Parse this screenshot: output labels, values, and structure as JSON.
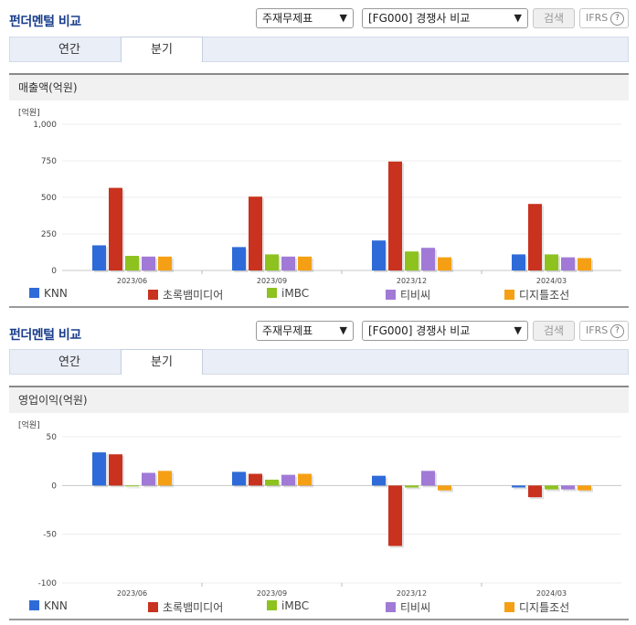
{
  "panels": [
    {
      "title": "펀더멘털 비교",
      "select_report": "주재무제표",
      "select_compare": "[FG000] 경쟁사 비교",
      "search_label": "검색",
      "ifrs_label": "IFRS",
      "help_label": "?",
      "tabs": [
        "연간",
        "분기"
      ],
      "active_tab": 1,
      "chart_title": "매출액(억원)",
      "chart_data": {
        "type": "bar",
        "title": "매출액(억원)",
        "unit_label": "[억원]",
        "categories": [
          "2023/06",
          "2023/09",
          "2023/12",
          "2024/03"
        ],
        "ylim": [
          0,
          1000
        ],
        "yticks": [
          0,
          250,
          500,
          750,
          1000
        ],
        "ytick_labels": [
          "0",
          "250",
          "500",
          "750",
          "1,000"
        ],
        "grid": true,
        "legend_position": "bottom",
        "series": [
          {
            "name": "KNN",
            "color": "#2e6bd8",
            "values": [
              172,
              160,
              205,
              110
            ]
          },
          {
            "name": "초록뱀미디어",
            "color": "#c8321e",
            "values": [
              565,
              505,
              745,
              455
            ]
          },
          {
            "name": "iMBC",
            "color": "#8dc21f",
            "values": [
              100,
              110,
              130,
              110
            ]
          },
          {
            "name": "티비씨",
            "color": "#a07ad6",
            "values": [
              95,
              95,
              155,
              90
            ]
          },
          {
            "name": "디지틀조선",
            "color": "#f5a014",
            "values": [
              95,
              95,
              90,
              85
            ]
          }
        ]
      }
    },
    {
      "title": "펀더멘털 비교",
      "select_report": "주재무제표",
      "select_compare": "[FG000] 경쟁사 비교",
      "search_label": "검색",
      "ifrs_label": "IFRS",
      "help_label": "?",
      "tabs": [
        "연간",
        "분기"
      ],
      "active_tab": 1,
      "chart_title": "영업이익(억원)",
      "chart_data": {
        "type": "bar",
        "title": "영업이익(억원)",
        "unit_label": "[억원]",
        "categories": [
          "2023/06",
          "2023/09",
          "2023/12",
          "2024/03"
        ],
        "ylim": [
          -100,
          50
        ],
        "yticks": [
          -100,
          -50,
          0,
          50
        ],
        "ytick_labels": [
          "-100",
          "-50",
          "0",
          "50"
        ],
        "grid": true,
        "legend_position": "bottom",
        "series": [
          {
            "name": "KNN",
            "color": "#2e6bd8",
            "values": [
              34,
              14,
              10,
              -2
            ]
          },
          {
            "name": "초록뱀미디어",
            "color": "#c8321e",
            "values": [
              32,
              12,
              -62,
              -12
            ]
          },
          {
            "name": "iMBC",
            "color": "#8dc21f",
            "values": [
              0,
              6,
              -2,
              -4
            ]
          },
          {
            "name": "티비씨",
            "color": "#a07ad6",
            "values": [
              13,
              11,
              15,
              -4
            ]
          },
          {
            "name": "디지틀조선",
            "color": "#f5a014",
            "values": [
              15,
              12,
              -5,
              -5
            ]
          }
        ]
      }
    }
  ]
}
